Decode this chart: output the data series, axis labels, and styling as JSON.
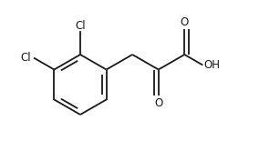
{
  "bg_color": "#ffffff",
  "line_color": "#1a1a1a",
  "line_width": 1.3,
  "font_size": 8.5,
  "cl1_label": "Cl",
  "cl2_label": "Cl",
  "o1_label": "O",
  "o2_label": "O",
  "oh_label": "OH"
}
